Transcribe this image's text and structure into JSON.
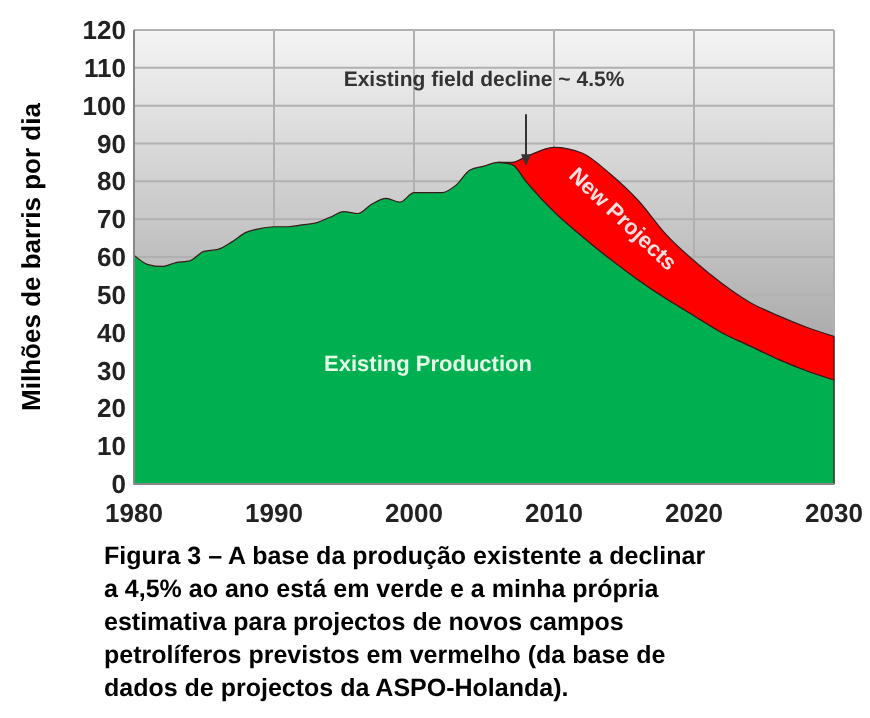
{
  "chart_data": {
    "type": "area",
    "stacked": true,
    "ylabel": "Milhões de barris por dia",
    "x": [
      1980,
      1981,
      1982,
      1983,
      1984,
      1985,
      1986,
      1987,
      1988,
      1989,
      1990,
      1991,
      1992,
      1993,
      1994,
      1995,
      1996,
      1997,
      1998,
      1999,
      2000,
      2001,
      2002,
      2003,
      2004,
      2005,
      2006,
      2007,
      2008,
      2010,
      2012,
      2014,
      2016,
      2018,
      2020,
      2022,
      2024,
      2026,
      2028,
      2030
    ],
    "series": [
      {
        "name": "Existing Production",
        "color": "#00b050",
        "values": [
          60.5,
          58,
          57.5,
          58.5,
          59,
          61.5,
          62,
          64,
          66.5,
          67.5,
          68,
          68,
          68.5,
          69,
          70.5,
          72,
          71.5,
          74,
          75.5,
          74.5,
          77,
          77,
          77,
          79,
          83,
          84,
          85,
          84.5,
          80,
          72,
          65.5,
          59.5,
          54,
          49,
          44.5,
          40,
          36.5,
          33,
          30,
          27.5
        ]
      },
      {
        "name": "New Projects",
        "color": "#ff0000",
        "values": [
          null,
          null,
          null,
          null,
          null,
          null,
          null,
          null,
          null,
          null,
          null,
          null,
          null,
          null,
          null,
          null,
          null,
          null,
          null,
          null,
          null,
          null,
          null,
          null,
          null,
          null,
          0,
          0.5,
          6.5,
          17,
          22,
          22.5,
          21,
          17,
          14.5,
          13,
          11.5,
          11.5,
          11.5,
          11.5
        ]
      }
    ],
    "xlim": [
      1980,
      2030
    ],
    "xticks": [
      1980,
      1990,
      2000,
      2010,
      2020,
      2030
    ],
    "ylim": [
      0,
      120
    ],
    "yticks": [
      0,
      10,
      20,
      30,
      40,
      50,
      60,
      70,
      80,
      90,
      100,
      110,
      120
    ],
    "grid": true,
    "annotations": [
      {
        "text": "Existing field decline ~ 4.5%",
        "x": 2008,
        "y": 84
      },
      "Figura 3 – A base da produção existente a declinar a 4,5% ao ano está em verde e a minha própria estimativa para projectos de novos campos petrolíferos previstos em vermelho (da base de dados de projectos da ASPO-Holanda)."
    ]
  }
}
